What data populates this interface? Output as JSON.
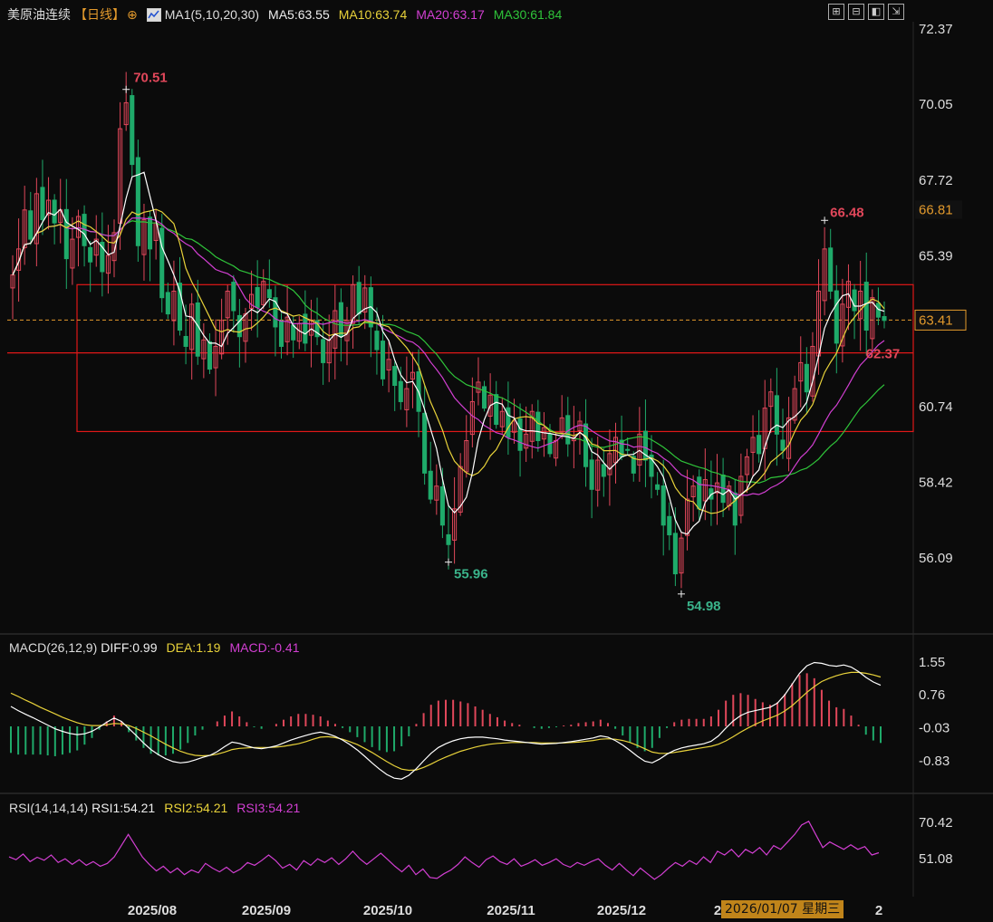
{
  "header": {
    "symbol": "美原油连续",
    "period": "【日线】",
    "period_icon": "crosshair-circle-icon",
    "indicator_icon": "chart-icon",
    "ma_label": "MA1(5,10,20,30)",
    "ma5": "MA5:63.55",
    "ma10": "MA10:63.74",
    "ma20": "MA20:63.17",
    "ma30": "MA30:61.84",
    "toolbar_icons": [
      "grid-icon",
      "expand-icon",
      "fullscreen-icon",
      "export-icon"
    ]
  },
  "macd_header": {
    "label": "MACD(26,12,9)",
    "diff": "DIFF:0.99",
    "dea": "DEA:1.19",
    "macd": "MACD:-0.41"
  },
  "rsi_header": {
    "label": "RSI(14,14,14)",
    "rsi1": "RSI1:54.21",
    "rsi2": "RSI2:54.21",
    "rsi3": "RSI3:54.21"
  },
  "colors": {
    "up": "#e0475a",
    "down": "#1faa6a",
    "ma5": "#ffffff",
    "ma10": "#e8d23a",
    "ma20": "#d23fd2",
    "ma30": "#2fc43a",
    "box": "#e01818",
    "current": "#e39a2c",
    "high_label": "#e0475a",
    "low_label": "#3ab38a"
  },
  "chart_data": [
    {
      "type": "candlestick",
      "title": "美原油连续 日线",
      "y_ticks": [
        "72.37",
        "70.05",
        "67.72",
        "65.39",
        "60.74",
        "58.42",
        "56.09"
      ],
      "ylim": [
        54.0,
        72.37
      ],
      "x_ticks": [
        "2025/08",
        "2025/09",
        "2025/10",
        "2025/11",
        "2025/12",
        "2026/01/07 星期三"
      ],
      "current_price": "63.41",
      "price_tag": "66.81",
      "annotations": [
        {
          "text": "70.51",
          "value": 70.51,
          "kind": "high"
        },
        {
          "text": "55.96",
          "value": 55.96,
          "kind": "low"
        },
        {
          "text": "54.98",
          "value": 54.98,
          "kind": "low"
        },
        {
          "text": "66.48",
          "value": 66.48,
          "kind": "high"
        },
        {
          "text": "62.37",
          "value": 62.37,
          "kind": "last"
        }
      ],
      "box_levels": {
        "top": 64.5,
        "bottom": 59.98
      },
      "support_line": 62.4,
      "current_line": 63.41,
      "closes": [
        64.8,
        65.6,
        66.8,
        65.9,
        67.3,
        66.5,
        67.1,
        66.4,
        66.8,
        65.3,
        65.9,
        66.6,
        65.7,
        65.2,
        65.9,
        64.9,
        65.4,
        66.1,
        69.3,
        70.1,
        68.2,
        65.7,
        66.5,
        65.6,
        66.4,
        64.1,
        63.6,
        64.3,
        63.1,
        62.6,
        63.9,
        62.3,
        62.8,
        61.9,
        62.6,
        63.4,
        64.3,
        63.7,
        62.9,
        63.6,
        64.2,
        63.8,
        64.6,
        64.1,
        63.2,
        62.6,
        63.5,
        62.8,
        63.3,
        62.7,
        63.4,
        62.9,
        62.1,
        62.8,
        63.7,
        62.9,
        63.4,
        64.5,
        63.6,
        64.4,
        63.2,
        62.5,
        61.6,
        62.2,
        61.4,
        60.9,
        61.3,
        61.8,
        60.6,
        58.7,
        57.9,
        58.3,
        57.1,
        56.5,
        57.6,
        58.9,
        59.7,
        60.9,
        61.5,
        60.7,
        61.1,
        60.2,
        60.6,
        59.8,
        60.3,
        59.4,
        59.9,
        60.6,
        59.7,
        60.1,
        59.3,
        59.7,
        60.4,
        59.6,
        59.8,
        60.3,
        58.9,
        58.2,
        59.1,
        58.6,
        59.3,
        59.8,
        59.2,
        59.4,
        58.7,
        59.9,
        59.1,
        58.6,
        58.2,
        57.1,
        56.8,
        55.6,
        56.7,
        57.9,
        58.3,
        57.6,
        58.5,
        57.9,
        58.4,
        57.8,
        58.3,
        57.1,
        58.6,
        59.2,
        59.8,
        59.3,
        60.7,
        61.2,
        59.9,
        59.4,
        60.4,
        61.3,
        62.1,
        61.2,
        62.6,
        64.3,
        65.6,
        64.3,
        62.7,
        63.9,
        64.6,
        63.7,
        64.3,
        63.1,
        64.1,
        63.5,
        63.4
      ]
    },
    {
      "type": "bar+line",
      "title": "MACD(26,12,9)",
      "y_ticks": [
        "1.55",
        "0.76",
        "-0.03",
        "-0.83"
      ],
      "ylim": [
        -1.5,
        1.85
      ],
      "series": [
        {
          "name": "DIFF"
        },
        {
          "name": "DEA"
        },
        {
          "name": "MACD"
        }
      ],
      "diff": [
        0.48,
        0.38,
        0.29,
        0.21,
        0.12,
        0.03,
        -0.06,
        -0.12,
        -0.17,
        -0.2,
        -0.18,
        -0.12,
        -0.02,
        0.1,
        0.2,
        0.12,
        -0.05,
        -0.22,
        -0.4,
        -0.56,
        -0.68,
        -0.78,
        -0.85,
        -0.88,
        -0.86,
        -0.81,
        -0.75,
        -0.7,
        -0.61,
        -0.49,
        -0.38,
        -0.41,
        -0.47,
        -0.52,
        -0.54,
        -0.51,
        -0.47,
        -0.4,
        -0.33,
        -0.27,
        -0.22,
        -0.17,
        -0.14,
        -0.18,
        -0.24,
        -0.33,
        -0.44,
        -0.57,
        -0.72,
        -0.88,
        -1.03,
        -1.16,
        -1.25,
        -1.27,
        -1.18,
        -1.02,
        -0.83,
        -0.65,
        -0.51,
        -0.42,
        -0.35,
        -0.3,
        -0.27,
        -0.26,
        -0.26,
        -0.28,
        -0.3,
        -0.33,
        -0.35,
        -0.37,
        -0.39,
        -0.41,
        -0.43,
        -0.42,
        -0.41,
        -0.39,
        -0.37,
        -0.34,
        -0.31,
        -0.28,
        -0.23,
        -0.26,
        -0.34,
        -0.45,
        -0.58,
        -0.72,
        -0.84,
        -0.88,
        -0.79,
        -0.67,
        -0.58,
        -0.52,
        -0.48,
        -0.45,
        -0.42,
        -0.36,
        -0.23,
        -0.04,
        0.13,
        0.26,
        0.34,
        0.38,
        0.42,
        0.46,
        0.56,
        0.76,
        1.02,
        1.28,
        1.46,
        1.54,
        1.52,
        1.47,
        1.45,
        1.48,
        1.43,
        1.32,
        1.18,
        1.07,
        0.99
      ],
      "dea": [
        0.8,
        0.72,
        0.63,
        0.55,
        0.46,
        0.38,
        0.3,
        0.22,
        0.15,
        0.09,
        0.04,
        0.02,
        0.02,
        0.04,
        0.07,
        0.06,
        0.02,
        -0.05,
        -0.14,
        -0.23,
        -0.33,
        -0.43,
        -0.52,
        -0.6,
        -0.66,
        -0.7,
        -0.71,
        -0.7,
        -0.67,
        -0.62,
        -0.56,
        -0.53,
        -0.52,
        -0.51,
        -0.51,
        -0.51,
        -0.5,
        -0.48,
        -0.45,
        -0.42,
        -0.37,
        -0.31,
        -0.26,
        -0.25,
        -0.27,
        -0.31,
        -0.37,
        -0.44,
        -0.53,
        -0.63,
        -0.74,
        -0.85,
        -0.95,
        -1.03,
        -1.06,
        -1.05,
        -0.99,
        -0.91,
        -0.82,
        -0.74,
        -0.67,
        -0.6,
        -0.55,
        -0.5,
        -0.46,
        -0.43,
        -0.41,
        -0.4,
        -0.39,
        -0.39,
        -0.39,
        -0.39,
        -0.4,
        -0.4,
        -0.4,
        -0.4,
        -0.39,
        -0.38,
        -0.36,
        -0.34,
        -0.31,
        -0.3,
        -0.31,
        -0.34,
        -0.39,
        -0.46,
        -0.54,
        -0.62,
        -0.65,
        -0.65,
        -0.63,
        -0.6,
        -0.57,
        -0.54,
        -0.51,
        -0.48,
        -0.43,
        -0.35,
        -0.25,
        -0.14,
        -0.04,
        0.05,
        0.13,
        0.2,
        0.27,
        0.37,
        0.5,
        0.66,
        0.82,
        0.96,
        1.08,
        1.16,
        1.22,
        1.27,
        1.3,
        1.3,
        1.28,
        1.24,
        1.19
      ]
    },
    {
      "type": "line",
      "title": "RSI(14,14,14)",
      "y_ticks": [
        "70.42",
        "51.08"
      ],
      "ylim": [
        38.0,
        72.0
      ],
      "series": [
        {
          "name": "RSI1"
        }
      ],
      "values": [
        52.0,
        50.5,
        53.5,
        49.5,
        51.8,
        50.2,
        53.0,
        49.0,
        51.0,
        48.0,
        50.5,
        47.5,
        49.5,
        47.0,
        48.5,
        52.0,
        58.0,
        64.0,
        58.0,
        52.0,
        48.0,
        44.5,
        47.0,
        43.5,
        46.0,
        42.5,
        45.0,
        43.5,
        48.5,
        46.0,
        44.0,
        46.5,
        43.5,
        45.5,
        49.0,
        47.5,
        50.0,
        53.0,
        50.0,
        46.0,
        48.0,
        45.0,
        50.0,
        47.5,
        51.0,
        49.0,
        51.5,
        48.0,
        51.0,
        55.0,
        51.0,
        48.0,
        51.0,
        54.0,
        50.5,
        47.0,
        44.0,
        47.5,
        42.5,
        45.5,
        41.0,
        40.5,
        43.0,
        45.0,
        48.0,
        52.0,
        49.0,
        46.5,
        50.5,
        52.5,
        49.5,
        48.0,
        51.0,
        47.0,
        48.5,
        50.5,
        47.5,
        49.0,
        51.0,
        48.0,
        46.5,
        49.0,
        47.5,
        49.5,
        51.0,
        47.5,
        45.0,
        48.5,
        45.0,
        42.0,
        46.0,
        43.0,
        40.0,
        42.5,
        46.0,
        49.0,
        47.0,
        50.0,
        48.0,
        52.0,
        49.0,
        55.0,
        53.0,
        56.0,
        52.0,
        56.0,
        54.0,
        57.0,
        53.0,
        58.0,
        56.0,
        60.0,
        64.0,
        69.0,
        71.0,
        64.0,
        57.0,
        60.0,
        58.0,
        56.0,
        58.5,
        56.0,
        57.5,
        53.0,
        54.2
      ]
    }
  ]
}
